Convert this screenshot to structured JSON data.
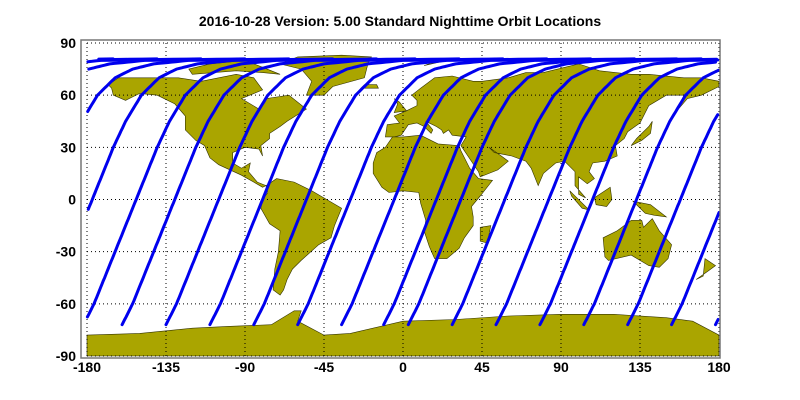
{
  "title": "2016-10-28    Version: 5.00  Standard    Nighttime Orbit Locations",
  "chart_data": {
    "type": "map",
    "projection": "equirectangular",
    "title": "2016-10-28    Version: 5.00  Standard    Nighttime Orbit Locations",
    "xlim": [
      -180,
      180
    ],
    "ylim": [
      -90,
      90
    ],
    "x_ticks": [
      "-180",
      "-135",
      "-90",
      "-45",
      "0",
      "45",
      "90",
      "135",
      "180"
    ],
    "y_ticks": [
      "90",
      "60",
      "30",
      "0",
      "-30",
      "-60",
      "-90"
    ],
    "grid": true,
    "orbit_track_start_longitudes": [
      -160,
      -135,
      -110,
      -85,
      -60,
      -35,
      -11,
      3,
      28,
      53,
      78,
      103,
      128,
      153,
      178
    ],
    "orbit_track_start_latitude": -72,
    "orbit_track_max_latitude": 81
  },
  "colors": {
    "land": "#aaa500",
    "coast": "#333300",
    "track": "#0000ee",
    "grid": "#000000"
  }
}
